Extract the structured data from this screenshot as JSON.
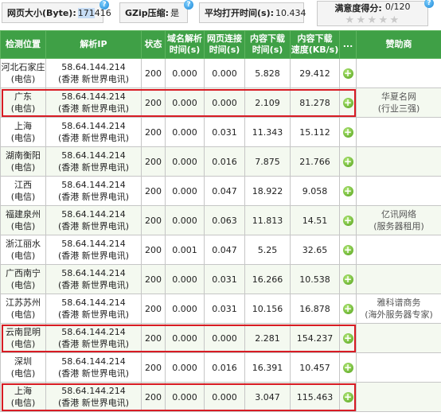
{
  "summary": {
    "page_size_label": "网页大小(Byte):",
    "page_size_selected": "171",
    "page_size_rest": "416",
    "gzip_label": "GZip压缩:",
    "gzip_value": "是",
    "avg_open_label": "平均打开时间(s):",
    "avg_open_value": "10.434",
    "satisfaction_label": "满意度得分:",
    "satisfaction_value": "0/120",
    "stars_filled": 0,
    "stars_total": 5
  },
  "table": {
    "headers": [
      "检测位置",
      "解析IP",
      "状态",
      "域名解析\n时间(s)",
      "网页连接\n时间(s)",
      "内容下载\n时间(s)",
      "内容下载\n速度(KB/s)",
      "...",
      "赞助商"
    ],
    "rows": [
      {
        "loc1": "河北石家庄",
        "loc2": "(电信)",
        "ip": "58.64.144.214",
        "isp": "(香港 新世界电讯)",
        "status": "200",
        "dns": "0.000",
        "conn": "0.000",
        "dl_time": "5.828",
        "speed": "29.412",
        "sp1": "",
        "sp2": ""
      },
      {
        "loc1": "广东",
        "loc2": "(电信)",
        "ip": "58.64.144.214",
        "isp": "(香港 新世界电讯)",
        "status": "200",
        "dns": "0.000",
        "conn": "0.000",
        "dl_time": "2.109",
        "speed": "81.278",
        "sp1": "华夏名网",
        "sp2": "(行业三强)"
      },
      {
        "loc1": "上海",
        "loc2": "(电信)",
        "ip": "58.64.144.214",
        "isp": "(香港 新世界电讯)",
        "status": "200",
        "dns": "0.000",
        "conn": "0.031",
        "dl_time": "11.343",
        "speed": "15.112",
        "sp1": "",
        "sp2": ""
      },
      {
        "loc1": "湖南衡阳",
        "loc2": "(电信)",
        "ip": "58.64.144.214",
        "isp": "(香港 新世界电讯)",
        "status": "200",
        "dns": "0.000",
        "conn": "0.016",
        "dl_time": "7.875",
        "speed": "21.766",
        "sp1": "",
        "sp2": ""
      },
      {
        "loc1": "江西",
        "loc2": "(电信)",
        "ip": "58.64.144.214",
        "isp": "(香港 新世界电讯)",
        "status": "200",
        "dns": "0.000",
        "conn": "0.047",
        "dl_time": "18.922",
        "speed": "9.058",
        "sp1": "",
        "sp2": ""
      },
      {
        "loc1": "福建泉州",
        "loc2": "(电信)",
        "ip": "58.64.144.214",
        "isp": "(香港 新世界电讯)",
        "status": "200",
        "dns": "0.000",
        "conn": "0.063",
        "dl_time": "11.813",
        "speed": "14.51",
        "sp1": "亿讯网络",
        "sp2": "(服务器租用)"
      },
      {
        "loc1": "浙江丽水",
        "loc2": "(电信)",
        "ip": "58.64.144.214",
        "isp": "(香港 新世界电讯)",
        "status": "200",
        "dns": "0.001",
        "conn": "0.047",
        "dl_time": "5.25",
        "speed": "32.65",
        "sp1": "",
        "sp2": ""
      },
      {
        "loc1": "广西南宁",
        "loc2": "(电信)",
        "ip": "58.64.144.214",
        "isp": "(香港 新世界电讯)",
        "status": "200",
        "dns": "0.000",
        "conn": "0.031",
        "dl_time": "16.266",
        "speed": "10.538",
        "sp1": "",
        "sp2": ""
      },
      {
        "loc1": "江苏苏州",
        "loc2": "(电信)",
        "ip": "58.64.144.214",
        "isp": "(香港 新世界电讯)",
        "status": "200",
        "dns": "0.000",
        "conn": "0.031",
        "dl_time": "10.156",
        "speed": "16.878",
        "sp1": "雅科谱商务",
        "sp2": "(海外服务器专家)"
      },
      {
        "loc1": "云南昆明",
        "loc2": "(电信)",
        "ip": "58.64.144.214",
        "isp": "(香港 新世界电讯)",
        "status": "200",
        "dns": "0.000",
        "conn": "0.000",
        "dl_time": "2.281",
        "speed": "154.237",
        "sp1": "",
        "sp2": ""
      },
      {
        "loc1": "深圳",
        "loc2": "(电信)",
        "ip": "58.64.144.214",
        "isp": "(香港 新世界电讯)",
        "status": "200",
        "dns": "0.000",
        "conn": "0.016",
        "dl_time": "16.391",
        "speed": "10.457",
        "sp1": "",
        "sp2": ""
      },
      {
        "loc1": "上海",
        "loc2": "(电信)",
        "ip": "58.64.144.214",
        "isp": "(香港 新世界电讯)",
        "status": "200",
        "dns": "0.000",
        "conn": "0.000",
        "dl_time": "3.047",
        "speed": "115.463",
        "sp1": "",
        "sp2": ""
      }
    ],
    "highlighted_rows": [
      1,
      9,
      11
    ]
  },
  "colors": {
    "header_bg": "#3fa046",
    "highlight_border": "#d81b24",
    "plus_icon": "#4f9e16"
  },
  "icons": {
    "help": "question-circle-icon",
    "expand": "plus-circle-icon",
    "rating": "star-icon"
  }
}
